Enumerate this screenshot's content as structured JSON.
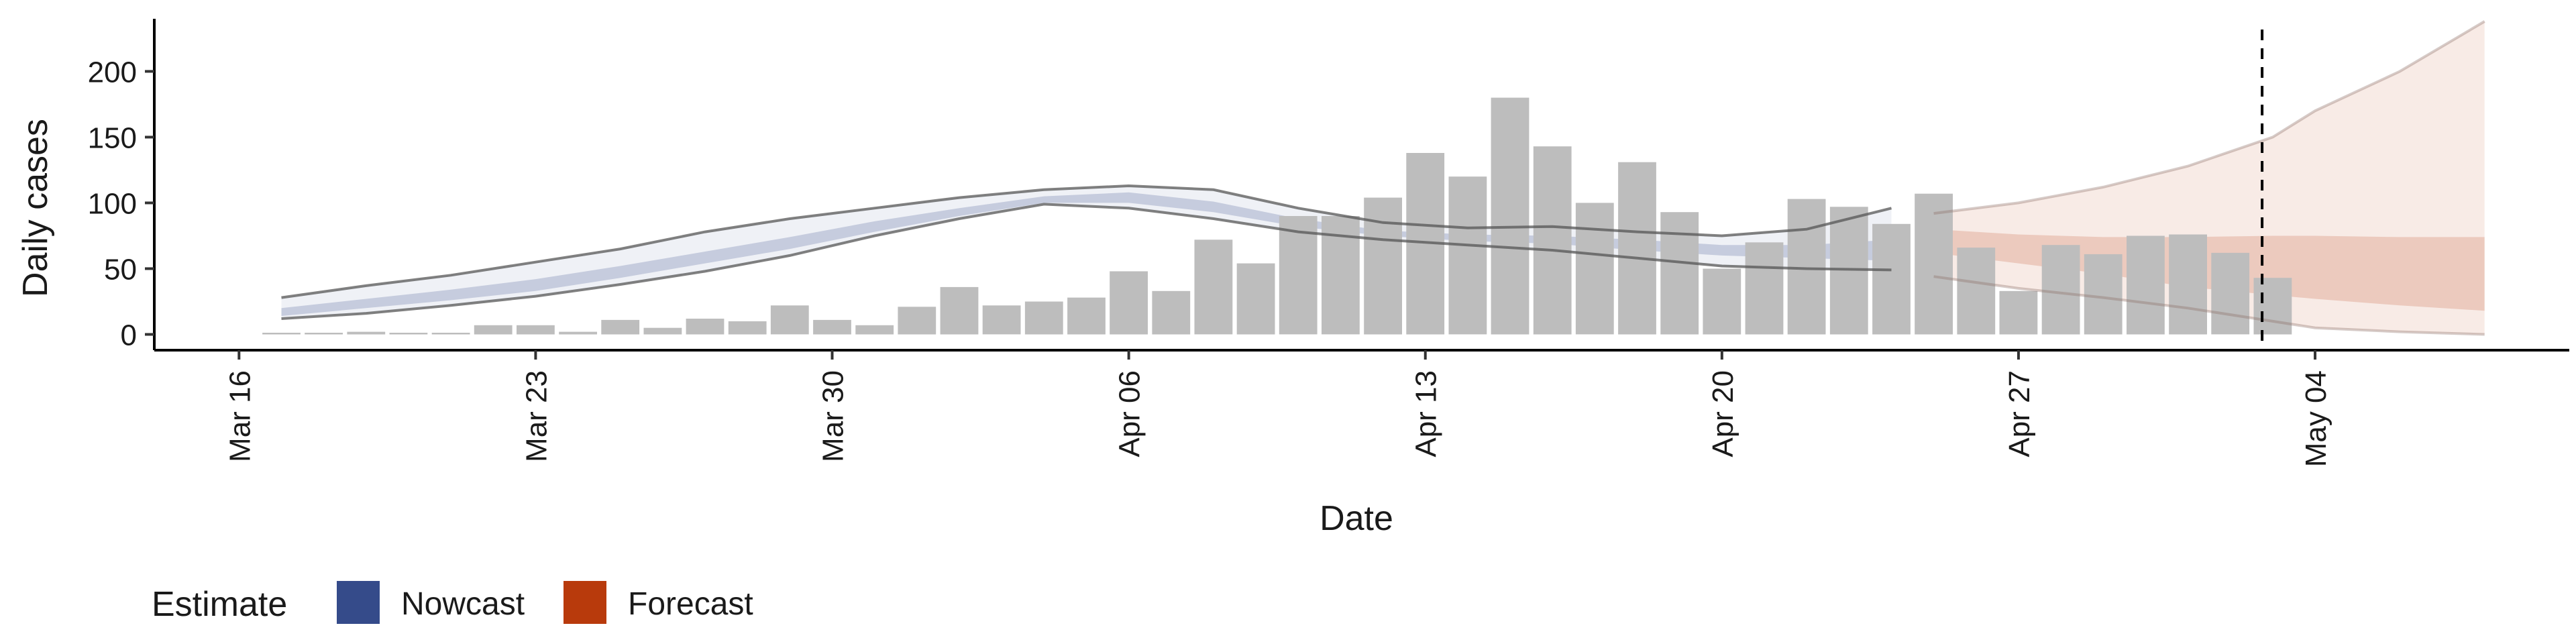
{
  "chart_data": {
    "type": "bar",
    "title": "",
    "xlabel": "Date",
    "ylabel": "Daily cases",
    "x_tick_labels": [
      "Mar 16",
      "Mar 23",
      "Mar 30",
      "Apr 06",
      "Apr 13",
      "Apr 20",
      "Apr 27",
      "May 04"
    ],
    "x_tick_dates": [
      "2020-03-16",
      "2020-03-23",
      "2020-03-30",
      "2020-04-06",
      "2020-04-13",
      "2020-04-20",
      "2020-04-27",
      "2020-05-04"
    ],
    "y_ticks": [
      0,
      50,
      100,
      150,
      200
    ],
    "ylim": [
      -12,
      240
    ],
    "xlim": [
      "2020-03-14",
      "2020-05-10"
    ],
    "grid": false,
    "legend_position": "bottom-left",
    "legend": {
      "title": "Estimate",
      "items": [
        {
          "label": "Nowcast",
          "color": "#354b8a"
        },
        {
          "label": "Forecast",
          "color": "#b83a0c"
        }
      ]
    },
    "reported_cases": {
      "dates": [
        "2020-03-17",
        "2020-03-18",
        "2020-03-19",
        "2020-03-20",
        "2020-03-21",
        "2020-03-22",
        "2020-03-23",
        "2020-03-24",
        "2020-03-25",
        "2020-03-26",
        "2020-03-27",
        "2020-03-28",
        "2020-03-29",
        "2020-03-30",
        "2020-03-31",
        "2020-04-01",
        "2020-04-02",
        "2020-04-03",
        "2020-04-04",
        "2020-04-05",
        "2020-04-06",
        "2020-04-07",
        "2020-04-08",
        "2020-04-09",
        "2020-04-10",
        "2020-04-11",
        "2020-04-12",
        "2020-04-13",
        "2020-04-14",
        "2020-04-15",
        "2020-04-16",
        "2020-04-17",
        "2020-04-18",
        "2020-04-19",
        "2020-04-20",
        "2020-04-21",
        "2020-04-22",
        "2020-04-23",
        "2020-04-24",
        "2020-04-25",
        "2020-04-26",
        "2020-04-27",
        "2020-04-28",
        "2020-04-29",
        "2020-04-30",
        "2020-05-01",
        "2020-05-02",
        "2020-05-03"
      ],
      "values": [
        1,
        0,
        2,
        0,
        0,
        7,
        7,
        2,
        11,
        5,
        12,
        10,
        22,
        11,
        7,
        21,
        36,
        22,
        25,
        28,
        48,
        33,
        72,
        54,
        90,
        90,
        104,
        138,
        120,
        180,
        143,
        100,
        131,
        93,
        50,
        70,
        103,
        97,
        84,
        107,
        66,
        33,
        68,
        61,
        75,
        76,
        62,
        43
      ],
      "color": "#bdbdbd"
    },
    "nowcast": {
      "dates": [
        "2020-03-17",
        "2020-03-19",
        "2020-03-21",
        "2020-03-23",
        "2020-03-25",
        "2020-03-27",
        "2020-03-29",
        "2020-03-31",
        "2020-04-02",
        "2020-04-04",
        "2020-04-06",
        "2020-04-08",
        "2020-04-10",
        "2020-04-12",
        "2020-04-14",
        "2020-04-16",
        "2020-04-18",
        "2020-04-20",
        "2020-04-22",
        "2020-04-24"
      ],
      "outer_upper": [
        28,
        37,
        45,
        55,
        65,
        78,
        88,
        96,
        104,
        110,
        113,
        110,
        96,
        85,
        81,
        82,
        78,
        75,
        80,
        96
      ],
      "outer_lower": [
        12,
        16,
        22,
        29,
        38,
        48,
        60,
        75,
        88,
        99,
        96,
        88,
        78,
        72,
        68,
        64,
        58,
        52,
        50,
        49
      ],
      "inner_upper": [
        20,
        27,
        34,
        42,
        52,
        63,
        74,
        86,
        96,
        105,
        108,
        101,
        88,
        79,
        76,
        75,
        72,
        68,
        68,
        72
      ],
      "inner_lower": [
        14,
        20,
        26,
        33,
        43,
        54,
        65,
        78,
        90,
        100,
        100,
        93,
        82,
        75,
        71,
        69,
        64,
        60,
        58,
        56
      ],
      "fill_color": "#354b8a"
    },
    "forecast": {
      "dates": [
        "2020-04-25",
        "2020-04-27",
        "2020-04-29",
        "2020-05-01",
        "2020-05-03",
        "2020-05-04",
        "2020-05-06",
        "2020-05-08"
      ],
      "outer_upper": [
        92,
        100,
        112,
        128,
        150,
        170,
        200,
        238
      ],
      "outer_lower": [
        44,
        35,
        28,
        20,
        10,
        5,
        2,
        0
      ],
      "inner_upper": [
        80,
        76,
        74,
        74,
        75,
        75,
        74,
        74
      ],
      "inner_lower": [
        62,
        54,
        46,
        36,
        30,
        27,
        22,
        18
      ],
      "fill_color": "#b83a0c"
    },
    "forecast_start_line": "2020-05-02T18:00"
  }
}
